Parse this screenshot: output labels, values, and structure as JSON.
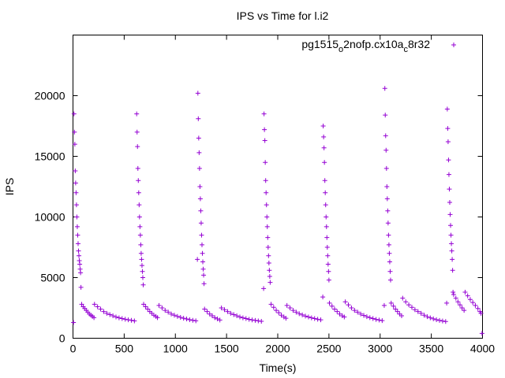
{
  "chart_data": {
    "type": "scatter",
    "title": "IPS vs Time for l.i2",
    "xlabel": "Time(s)",
    "ylabel": "IPS",
    "xlim": [
      0,
      4000
    ],
    "ylim": [
      0,
      25000
    ],
    "xticks": [
      0,
      500,
      1000,
      1500,
      2000,
      2500,
      3000,
      3500,
      4000
    ],
    "yticks": [
      0,
      5000,
      10000,
      15000,
      20000
    ],
    "xtick_labels": [
      "0",
      "500",
      "1000",
      "1500",
      "2000",
      "2500",
      "3000",
      "3500",
      "4000"
    ],
    "ytick_labels": [
      "0",
      "5000",
      "10000",
      "15000",
      "20000"
    ],
    "grid": false,
    "legend_position": "top-right",
    "marker": "plus",
    "color": "#9400d3",
    "series": [
      {
        "name": "pg1515_o2nofp.cx10a_c8r32",
        "name_parts": {
          "base": "pg1515",
          "sub1": "o",
          "mid": "2nofp.cx10a",
          "sub2": "c",
          "end": "8r32"
        },
        "points": [
          [
            5,
            1300
          ],
          [
            10,
            18500
          ],
          [
            14,
            17000
          ],
          [
            18,
            16000
          ],
          [
            22,
            13800
          ],
          [
            26,
            12800
          ],
          [
            30,
            12000
          ],
          [
            34,
            11000
          ],
          [
            38,
            10000
          ],
          [
            42,
            9200
          ],
          [
            46,
            8500
          ],
          [
            50,
            7800
          ],
          [
            54,
            7200
          ],
          [
            58,
            6800
          ],
          [
            62,
            6400
          ],
          [
            66,
            6100
          ],
          [
            70,
            5700
          ],
          [
            74,
            5400
          ],
          [
            78,
            4200
          ],
          [
            85,
            2800
          ],
          [
            100,
            2600
          ],
          [
            115,
            2450
          ],
          [
            130,
            2300
          ],
          [
            145,
            2150
          ],
          [
            160,
            2000
          ],
          [
            175,
            1900
          ],
          [
            190,
            1800
          ],
          [
            205,
            1700
          ],
          [
            210,
            2800
          ],
          [
            240,
            2600
          ],
          [
            270,
            2400
          ],
          [
            300,
            2200
          ],
          [
            330,
            2050
          ],
          [
            360,
            1950
          ],
          [
            390,
            1850
          ],
          [
            420,
            1750
          ],
          [
            450,
            1680
          ],
          [
            480,
            1620
          ],
          [
            510,
            1570
          ],
          [
            540,
            1520
          ],
          [
            570,
            1480
          ],
          [
            600,
            1430
          ],
          [
            622,
            18500
          ],
          [
            626,
            17000
          ],
          [
            630,
            15800
          ],
          [
            634,
            14000
          ],
          [
            638,
            13000
          ],
          [
            642,
            12000
          ],
          [
            646,
            11000
          ],
          [
            650,
            10000
          ],
          [
            654,
            9200
          ],
          [
            658,
            8500
          ],
          [
            662,
            7700
          ],
          [
            666,
            7000
          ],
          [
            670,
            6500
          ],
          [
            674,
            6000
          ],
          [
            678,
            5500
          ],
          [
            682,
            5000
          ],
          [
            686,
            4400
          ],
          [
            690,
            2800
          ],
          [
            710,
            2600
          ],
          [
            730,
            2400
          ],
          [
            750,
            2200
          ],
          [
            770,
            2050
          ],
          [
            790,
            1900
          ],
          [
            810,
            1800
          ],
          [
            825,
            1700
          ],
          [
            840,
            2700
          ],
          [
            870,
            2500
          ],
          [
            900,
            2300
          ],
          [
            930,
            2150
          ],
          [
            960,
            2000
          ],
          [
            990,
            1900
          ],
          [
            1020,
            1800
          ],
          [
            1050,
            1720
          ],
          [
            1080,
            1650
          ],
          [
            1110,
            1590
          ],
          [
            1140,
            1530
          ],
          [
            1170,
            1480
          ],
          [
            1200,
            1440
          ],
          [
            1215,
            6500
          ],
          [
            1220,
            20200
          ],
          [
            1224,
            18100
          ],
          [
            1228,
            16500
          ],
          [
            1232,
            15300
          ],
          [
            1236,
            14000
          ],
          [
            1240,
            12500
          ],
          [
            1244,
            11500
          ],
          [
            1248,
            10500
          ],
          [
            1252,
            9500
          ],
          [
            1256,
            8500
          ],
          [
            1260,
            7700
          ],
          [
            1264,
            7000
          ],
          [
            1268,
            6300
          ],
          [
            1272,
            5700
          ],
          [
            1276,
            5200
          ],
          [
            1280,
            4500
          ],
          [
            1285,
            2400
          ],
          [
            1310,
            2200
          ],
          [
            1335,
            2000
          ],
          [
            1360,
            1850
          ],
          [
            1385,
            1700
          ],
          [
            1410,
            1600
          ],
          [
            1435,
            1500
          ],
          [
            1450,
            2500
          ],
          [
            1480,
            2350
          ],
          [
            1510,
            2200
          ],
          [
            1540,
            2050
          ],
          [
            1570,
            1950
          ],
          [
            1600,
            1850
          ],
          [
            1630,
            1750
          ],
          [
            1660,
            1680
          ],
          [
            1690,
            1620
          ],
          [
            1720,
            1560
          ],
          [
            1750,
            1510
          ],
          [
            1780,
            1470
          ],
          [
            1810,
            1430
          ],
          [
            1840,
            1400
          ],
          [
            1862,
            4100
          ],
          [
            1866,
            18500
          ],
          [
            1870,
            17200
          ],
          [
            1874,
            16300
          ],
          [
            1878,
            14500
          ],
          [
            1882,
            13000
          ],
          [
            1886,
            12000
          ],
          [
            1890,
            11000
          ],
          [
            1894,
            10000
          ],
          [
            1898,
            9200
          ],
          [
            1902,
            8300
          ],
          [
            1906,
            7500
          ],
          [
            1910,
            6800
          ],
          [
            1914,
            6200
          ],
          [
            1918,
            5600
          ],
          [
            1922,
            5100
          ],
          [
            1926,
            4600
          ],
          [
            1935,
            2800
          ],
          [
            1960,
            2550
          ],
          [
            1985,
            2300
          ],
          [
            2010,
            2100
          ],
          [
            2035,
            1900
          ],
          [
            2060,
            1750
          ],
          [
            2080,
            1650
          ],
          [
            2090,
            2700
          ],
          [
            2120,
            2500
          ],
          [
            2150,
            2300
          ],
          [
            2180,
            2150
          ],
          [
            2210,
            2020
          ],
          [
            2240,
            1920
          ],
          [
            2270,
            1830
          ],
          [
            2300,
            1750
          ],
          [
            2330,
            1680
          ],
          [
            2360,
            1620
          ],
          [
            2390,
            1570
          ],
          [
            2420,
            1520
          ],
          [
            2440,
            3400
          ],
          [
            2444,
            17500
          ],
          [
            2448,
            16600
          ],
          [
            2452,
            15700
          ],
          [
            2456,
            14500
          ],
          [
            2460,
            13000
          ],
          [
            2464,
            12000
          ],
          [
            2468,
            11000
          ],
          [
            2472,
            10000
          ],
          [
            2476,
            9200
          ],
          [
            2480,
            8300
          ],
          [
            2484,
            7500
          ],
          [
            2488,
            6800
          ],
          [
            2492,
            6100
          ],
          [
            2496,
            5500
          ],
          [
            2500,
            4800
          ],
          [
            2505,
            2900
          ],
          [
            2530,
            2650
          ],
          [
            2555,
            2400
          ],
          [
            2580,
            2200
          ],
          [
            2605,
            2000
          ],
          [
            2630,
            1850
          ],
          [
            2650,
            1750
          ],
          [
            2660,
            3000
          ],
          [
            2690,
            2750
          ],
          [
            2720,
            2500
          ],
          [
            2750,
            2300
          ],
          [
            2780,
            2150
          ],
          [
            2810,
            2000
          ],
          [
            2840,
            1880
          ],
          [
            2870,
            1780
          ],
          [
            2900,
            1700
          ],
          [
            2930,
            1620
          ],
          [
            2960,
            1550
          ],
          [
            2990,
            1500
          ],
          [
            3020,
            1450
          ],
          [
            3040,
            2700
          ],
          [
            3046,
            20600
          ],
          [
            3050,
            18400
          ],
          [
            3054,
            16700
          ],
          [
            3058,
            15500
          ],
          [
            3062,
            14000
          ],
          [
            3066,
            12500
          ],
          [
            3070,
            11500
          ],
          [
            3074,
            10500
          ],
          [
            3078,
            9500
          ],
          [
            3082,
            8500
          ],
          [
            3086,
            7700
          ],
          [
            3090,
            7000
          ],
          [
            3094,
            6300
          ],
          [
            3098,
            5500
          ],
          [
            3102,
            4800
          ],
          [
            3108,
            2900
          ],
          [
            3130,
            2650
          ],
          [
            3150,
            2400
          ],
          [
            3170,
            2200
          ],
          [
            3190,
            2000
          ],
          [
            3210,
            1850
          ],
          [
            3220,
            3300
          ],
          [
            3250,
            3000
          ],
          [
            3280,
            2750
          ],
          [
            3310,
            2550
          ],
          [
            3340,
            2350
          ],
          [
            3370,
            2200
          ],
          [
            3400,
            2050
          ],
          [
            3430,
            1900
          ],
          [
            3460,
            1780
          ],
          [
            3490,
            1680
          ],
          [
            3520,
            1600
          ],
          [
            3550,
            1530
          ],
          [
            3580,
            1470
          ],
          [
            3610,
            1420
          ],
          [
            3640,
            1380
          ],
          [
            3650,
            2900
          ],
          [
            3656,
            18900
          ],
          [
            3660,
            17300
          ],
          [
            3664,
            16200
          ],
          [
            3668,
            14700
          ],
          [
            3672,
            13500
          ],
          [
            3676,
            12300
          ],
          [
            3680,
            11200
          ],
          [
            3684,
            10200
          ],
          [
            3688,
            9300
          ],
          [
            3692,
            8500
          ],
          [
            3696,
            7800
          ],
          [
            3700,
            7200
          ],
          [
            3704,
            6500
          ],
          [
            3708,
            5600
          ],
          [
            3712,
            3800
          ],
          [
            3718,
            3600
          ],
          [
            3740,
            3300
          ],
          [
            3760,
            3000
          ],
          [
            3780,
            2750
          ],
          [
            3800,
            2500
          ],
          [
            3820,
            2300
          ],
          [
            3830,
            3800
          ],
          [
            3855,
            3500
          ],
          [
            3880,
            3200
          ],
          [
            3905,
            2950
          ],
          [
            3930,
            2700
          ],
          [
            3955,
            2450
          ],
          [
            3975,
            2200
          ],
          [
            3985,
            2050
          ],
          [
            3995,
            400
          ]
        ]
      }
    ]
  }
}
